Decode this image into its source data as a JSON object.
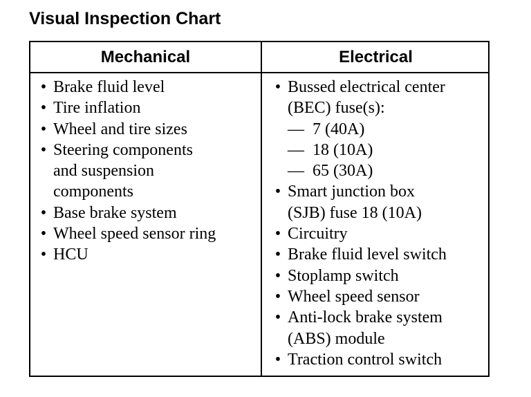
{
  "title": "Visual Inspection Chart",
  "bullet": "•",
  "dash": "—",
  "headers": {
    "mechanical": "Mechanical",
    "electrical": "Electrical"
  },
  "mechanical": [
    {
      "lines": [
        "Brake fluid level"
      ]
    },
    {
      "lines": [
        "Tire inflation"
      ]
    },
    {
      "lines": [
        "Wheel and tire sizes"
      ]
    },
    {
      "lines": [
        "Steering components",
        "and suspension",
        "components"
      ]
    },
    {
      "lines": [
        "Base brake system"
      ]
    },
    {
      "lines": [
        "Wheel speed sensor ring"
      ]
    },
    {
      "lines": [
        "HCU"
      ]
    }
  ],
  "electrical": [
    {
      "lines": [
        "Bussed electrical center",
        "(BEC) fuse(s):"
      ],
      "sub": [
        "7 (40A)",
        "18 (10A)",
        "65 (30A)"
      ]
    },
    {
      "lines": [
        "Smart junction box",
        "(SJB) fuse 18 (10A)"
      ]
    },
    {
      "lines": [
        "Circuitry"
      ]
    },
    {
      "lines": [
        "Brake fluid level switch"
      ]
    },
    {
      "lines": [
        "Stoplamp switch"
      ]
    },
    {
      "lines": [
        "Wheel speed sensor"
      ]
    },
    {
      "lines": [
        "Anti-lock brake system",
        "(ABS) module"
      ]
    },
    {
      "lines": [
        "Traction control switch"
      ]
    }
  ]
}
